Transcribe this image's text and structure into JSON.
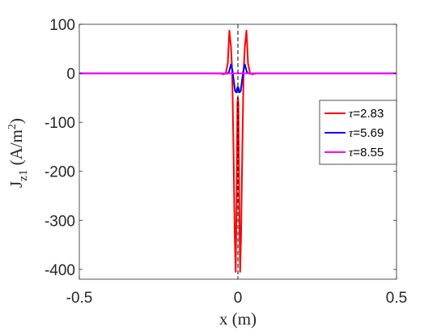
{
  "chart_data": {
    "type": "line",
    "title": "",
    "xlabel": "x (m)",
    "ylabel": "J",
    "ylabel_subscript": "z1",
    "ylabel_unit_prefix": " (A/m",
    "ylabel_unit_sup": "2",
    "ylabel_unit_suffix": ")",
    "xlim": [
      -0.5,
      0.5
    ],
    "ylim": [
      -420,
      100
    ],
    "xticks": [
      -0.5,
      0,
      0.5
    ],
    "xtick_labels": [
      "-0.5",
      "0",
      "0.5"
    ],
    "yticks": [
      100,
      0,
      -100,
      -200,
      -300,
      -400
    ],
    "ytick_labels": [
      "100",
      "0",
      "-100",
      "-200",
      "-300",
      "-400"
    ],
    "grid": false,
    "legend_position": "right",
    "reference_line": {
      "x": 0,
      "style": "dashed",
      "color": "#000000"
    },
    "series": [
      {
        "name": "2.83",
        "legend_prefix": "τ",
        "legend_suffix": "=2.83",
        "color": "#ff0000",
        "x": [
          -0.5,
          -0.06,
          -0.045,
          -0.038,
          -0.032,
          -0.027,
          -0.022,
          -0.018,
          -0.014,
          -0.01,
          -0.007,
          -0.004,
          -0.0015,
          0,
          0.0015,
          0.004,
          0.007,
          0.01,
          0.014,
          0.018,
          0.022,
          0.027,
          0.032,
          0.038,
          0.045,
          0.06,
          0.5
        ],
        "y": [
          0,
          0,
          -2,
          1,
          20,
          87,
          55,
          5,
          -150,
          -330,
          -405,
          -250,
          -60,
          -50,
          -60,
          -250,
          -405,
          -330,
          -150,
          5,
          55,
          87,
          20,
          1,
          -2,
          0,
          0
        ]
      },
      {
        "name": "5.69",
        "legend_prefix": "τ",
        "legend_suffix": "=5.69",
        "color": "#0000ff",
        "x": [
          -0.5,
          -0.05,
          -0.035,
          -0.028,
          -0.022,
          -0.017,
          -0.013,
          -0.009,
          -0.005,
          -0.002,
          0,
          0.002,
          0.005,
          0.009,
          0.013,
          0.017,
          0.022,
          0.028,
          0.035,
          0.05,
          0.5
        ],
        "y": [
          0,
          0,
          -1,
          3,
          18,
          5,
          -15,
          -36,
          -39,
          -30,
          -28,
          -30,
          -39,
          -36,
          -15,
          5,
          18,
          3,
          -1,
          0,
          0
        ]
      },
      {
        "name": "8.55",
        "legend_prefix": "τ",
        "legend_suffix": "=8.55",
        "color": "#ff00ff",
        "x": [
          -0.5,
          0.5
        ],
        "y": [
          0,
          0
        ]
      }
    ]
  }
}
